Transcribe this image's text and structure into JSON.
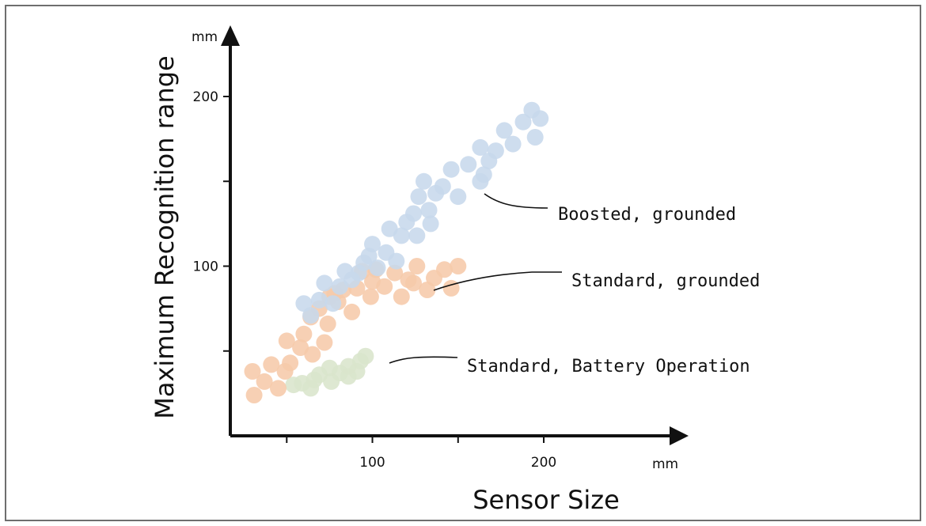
{
  "chart_data": {
    "type": "scatter",
    "xlabel": "Sensor Size",
    "ylabel": "Maximum Recognition range",
    "x_unit": "mm",
    "y_unit": "mm",
    "x_ticks": [
      50,
      100,
      150,
      200
    ],
    "x_tick_labels": [
      "",
      "100",
      "",
      "200"
    ],
    "y_ticks": [
      50,
      100,
      150,
      200
    ],
    "y_tick_labels": [
      "",
      "100",
      "",
      "200"
    ],
    "xlim": [
      18,
      260
    ],
    "ylim": [
      0,
      240
    ],
    "grid": false,
    "series": [
      {
        "name": "Standard, Battery Operation",
        "color": "#d9e5cc",
        "points": [
          [
            54,
            30
          ],
          [
            59,
            31
          ],
          [
            64,
            28
          ],
          [
            66,
            33
          ],
          [
            69,
            36
          ],
          [
            75,
            40
          ],
          [
            76,
            32
          ],
          [
            81,
            37
          ],
          [
            86,
            35
          ],
          [
            86,
            41
          ],
          [
            91,
            38
          ],
          [
            93,
            44
          ],
          [
            96,
            47
          ]
        ]
      },
      {
        "name": "Standard, grounded",
        "color": "#f6c9aa",
        "points": [
          [
            30,
            38
          ],
          [
            31,
            24
          ],
          [
            37,
            32
          ],
          [
            41,
            42
          ],
          [
            45,
            28
          ],
          [
            49,
            38
          ],
          [
            50,
            56
          ],
          [
            52,
            43
          ],
          [
            58,
            52
          ],
          [
            60,
            60
          ],
          [
            64,
            70
          ],
          [
            65,
            48
          ],
          [
            69,
            75
          ],
          [
            72,
            55
          ],
          [
            74,
            66
          ],
          [
            75,
            82
          ],
          [
            78,
            84
          ],
          [
            80,
            79
          ],
          [
            83,
            86
          ],
          [
            88,
            73
          ],
          [
            91,
            87
          ],
          [
            94,
            97
          ],
          [
            99,
            82
          ],
          [
            100,
            91
          ],
          [
            102,
            98
          ],
          [
            107,
            88
          ],
          [
            113,
            96
          ],
          [
            117,
            82
          ],
          [
            121,
            92
          ],
          [
            124,
            90
          ],
          [
            126,
            100
          ],
          [
            132,
            86
          ],
          [
            136,
            93
          ],
          [
            142,
            98
          ],
          [
            146,
            87
          ],
          [
            150,
            100
          ]
        ]
      },
      {
        "name": "Boosted, grounded",
        "color": "#c7d8ec",
        "points": [
          [
            60,
            78
          ],
          [
            64,
            71
          ],
          [
            69,
            80
          ],
          [
            72,
            90
          ],
          [
            77,
            78
          ],
          [
            81,
            88
          ],
          [
            84,
            97
          ],
          [
            88,
            92
          ],
          [
            92,
            96
          ],
          [
            95,
            102
          ],
          [
            98,
            106
          ],
          [
            100,
            113
          ],
          [
            103,
            99
          ],
          [
            108,
            108
          ],
          [
            110,
            122
          ],
          [
            114,
            103
          ],
          [
            117,
            118
          ],
          [
            120,
            126
          ],
          [
            124,
            131
          ],
          [
            126,
            118
          ],
          [
            127,
            141
          ],
          [
            130,
            150
          ],
          [
            133,
            133
          ],
          [
            134,
            125
          ],
          [
            137,
            143
          ],
          [
            141,
            147
          ],
          [
            146,
            157
          ],
          [
            150,
            141
          ],
          [
            156,
            160
          ],
          [
            163,
            150
          ],
          [
            163,
            170
          ],
          [
            165,
            154
          ],
          [
            168,
            162
          ],
          [
            172,
            168
          ],
          [
            177,
            180
          ],
          [
            182,
            172
          ],
          [
            188,
            185
          ],
          [
            193,
            192
          ],
          [
            195,
            176
          ],
          [
            198,
            187
          ]
        ]
      }
    ],
    "annotations": [
      {
        "text": "Boosted, grounded",
        "series": "Boosted, grounded"
      },
      {
        "text": "Standard, grounded",
        "series": "Standard, grounded"
      },
      {
        "text": "Standard, Battery Operation",
        "series": "Standard, Battery Operation"
      }
    ]
  }
}
